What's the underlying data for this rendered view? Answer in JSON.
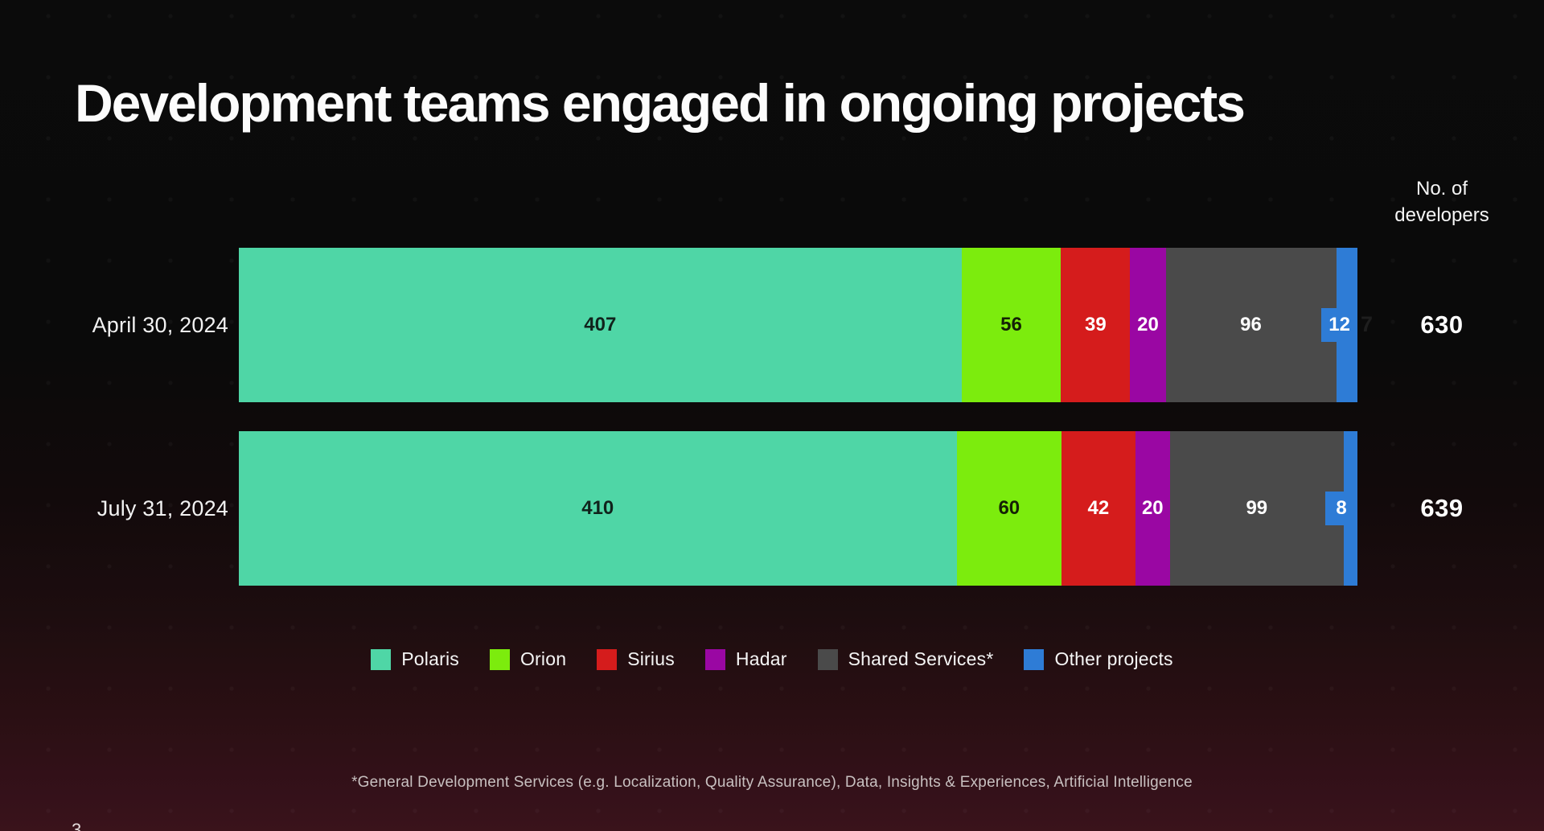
{
  "title": "Development teams engaged in ongoing projects",
  "axis_header_lines": [
    "No. of",
    "developers"
  ],
  "footnote": "*General Development Services (e.g. Localization, Quality Assurance), Data, Insights & Experiences, Artificial Intelligence",
  "page_number": "3",
  "colors": {
    "background_top": "#0b0b0b",
    "background_bottom": "#3a131b",
    "title_text": "#fcfcfc",
    "label_text": "#f2f2f2",
    "footnote_text": "#c8c0c0"
  },
  "chart_data": {
    "type": "bar",
    "variant": "horizontal-stacked",
    "categories": [
      "April 30, 2024",
      "July 31, 2024"
    ],
    "series": [
      {
        "name": "Polaris",
        "color": "#4fd6a6",
        "label_color": "#10231c",
        "values": [
          407,
          410
        ]
      },
      {
        "name": "Orion",
        "color": "#7cec0d",
        "label_color": "#142105",
        "values": [
          56,
          60
        ]
      },
      {
        "name": "Sirius",
        "color": "#d51c1c",
        "label_color": "#ffffff",
        "values": [
          39,
          42
        ]
      },
      {
        "name": "Hadar",
        "color": "#9a07a3",
        "label_color": "#ffffff",
        "values": [
          20,
          20
        ]
      },
      {
        "name": "Shared Services*",
        "color": "#4a4a4a",
        "label_color": "#ffffff",
        "values": [
          96,
          99
        ]
      },
      {
        "name": "Other projects",
        "color": "#2e7cd6",
        "label_color": "#ffffff",
        "values": [
          12,
          8
        ],
        "label_style": "pill"
      }
    ],
    "totals": [
      630,
      639
    ],
    "totals_header": "No. of developers",
    "legend_position": "bottom",
    "bars_full_width": true,
    "stray_label": {
      "text": "7",
      "row": 0
    }
  }
}
